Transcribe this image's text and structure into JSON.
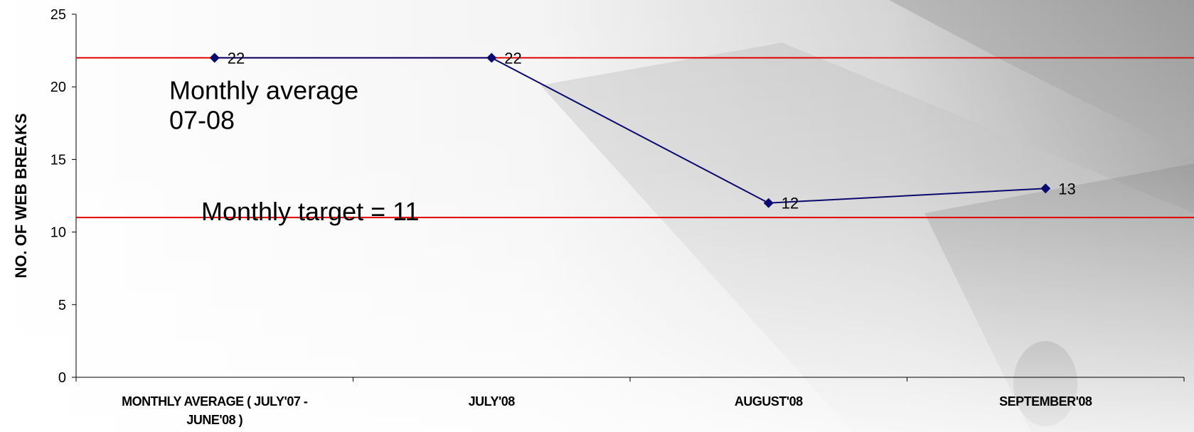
{
  "chart_data": {
    "type": "line",
    "categories": [
      "MONTHLY AVERAGE ( JULY'07 - JUNE'08 )",
      "JULY'08",
      "AUGUST'08",
      "SEPTEMBER'08"
    ],
    "category_label_lines": [
      [
        "MONTHLY AVERAGE ( JULY'07 -",
        "JUNE'08 )"
      ],
      [
        "JULY'08"
      ],
      [
        "AUGUST'08"
      ],
      [
        "SEPTEMBER'08"
      ]
    ],
    "series": [
      {
        "values": [
          22,
          22,
          12,
          13
        ],
        "color": "#0a0a6e",
        "marker": "diamond"
      }
    ],
    "data_labels": [
      "22",
      "22",
      "12",
      "13"
    ],
    "reference_lines": [
      {
        "value": 22,
        "color": "#e00000",
        "label_lines": [
          "Monthly average",
          "07-08"
        ]
      },
      {
        "value": 11,
        "color": "#e00000",
        "label_lines": [
          "Monthly target = 11"
        ]
      }
    ],
    "ylabel": "NO. OF WEB BREAKS",
    "xlabel": "",
    "ylim": [
      0,
      25
    ],
    "y_ticks": [
      0,
      5,
      10,
      15,
      20,
      25
    ],
    "grid": false,
    "legend": "none"
  },
  "background": {
    "description_colors": [
      "#ffffff",
      "#d9d9d9",
      "#8c8c8c",
      "#3a3a3a"
    ]
  }
}
